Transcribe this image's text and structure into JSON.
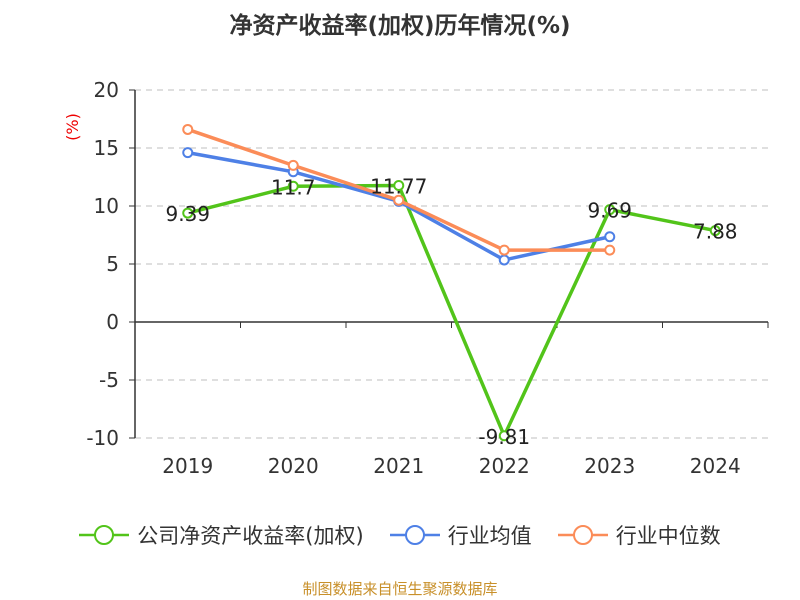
{
  "chart_data": {
    "type": "line",
    "title": "净资产收益率(加权)历年情况(%)",
    "ylabel": "(%)",
    "ylim": [
      -10,
      20
    ],
    "yticks": [
      20,
      15,
      10,
      5,
      0,
      -5,
      -10
    ],
    "categories": [
      "2019",
      "2020",
      "2021",
      "2022",
      "2023",
      "2024"
    ],
    "grid": true,
    "legend_position": "bottom",
    "series": [
      {
        "name": "公司净资产收益率(加权)",
        "color": "#52c41a",
        "values": [
          9.39,
          11.7,
          11.77,
          -9.81,
          9.69,
          7.88
        ],
        "labels": [
          "9.39",
          "11.7",
          "11.77",
          "-9.81",
          "9.69",
          "7.88"
        ]
      },
      {
        "name": "行业均值",
        "color": "#4e80e6",
        "values": [
          14.6,
          12.95,
          10.4,
          5.35,
          7.35,
          null
        ]
      },
      {
        "name": "行业中位数",
        "color": "#fb8c58",
        "values": [
          16.6,
          13.5,
          10.5,
          6.2,
          6.2,
          null
        ]
      }
    ]
  },
  "source": "制图数据来自恒生聚源数据库"
}
